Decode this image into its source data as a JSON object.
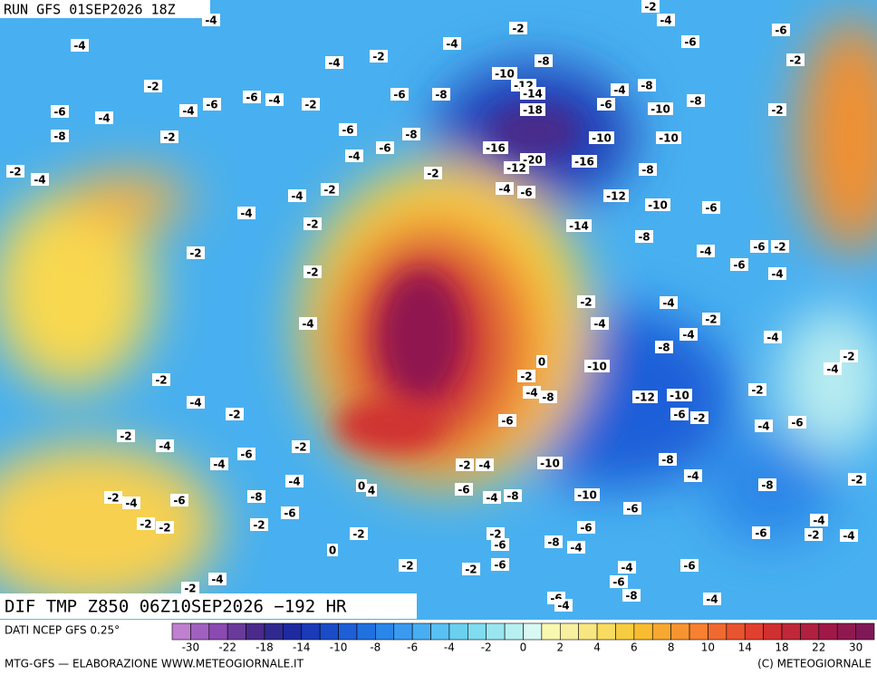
{
  "header": {
    "run": "RUN GFS 01SEP2026 18Z",
    "product": "DIF TMP Z850 06Z10SEP2026 −192 HR",
    "source": "DATI NCEP GFS 0.25°",
    "credit": "MTG-GFS — ELABORAZIONE WWW.METEOGIORNALE.IT",
    "copyright": "(C) METEOGIORNALE"
  },
  "legend": {
    "labels": [
      -30,
      -22,
      -18,
      -14,
      -10,
      -8,
      -6,
      -4,
      -2,
      0,
      2,
      4,
      6,
      8,
      10,
      14,
      18,
      22,
      30
    ],
    "colors": [
      "#c080d0",
      "#a060c0",
      "#8a4ab0",
      "#6a3a9a",
      "#4a2a8a",
      "#302a90",
      "#1e2aa0",
      "#1a3ab8",
      "#1a4cc8",
      "#1e5ed8",
      "#2070e0",
      "#2a86e8",
      "#3a9af0",
      "#48aef2",
      "#58c0f4",
      "#6ad0f0",
      "#80dcf0",
      "#9ae6f0",
      "#b8f0f0",
      "#d8f8f4",
      "#f8f8b0",
      "#f8f0a0",
      "#f8e680",
      "#f8dc60",
      "#f8cc40",
      "#f8bc30",
      "#f8a830",
      "#f89430",
      "#f88030",
      "#f06a30",
      "#e85430",
      "#e04030",
      "#d03030",
      "#c02838",
      "#b02040",
      "#a01848",
      "#901850",
      "#801858"
    ]
  },
  "contour_labels": [
    -4,
    -2,
    -2,
    -4,
    -6,
    -4,
    -4,
    -6,
    -2,
    -4,
    -8,
    -2,
    -10,
    -12,
    -14,
    -4,
    -8,
    -2,
    -6,
    -8,
    -6,
    -4,
    -8,
    -10,
    -18,
    -6,
    -4,
    -6,
    -4,
    -2,
    -2,
    -6,
    -8,
    -2,
    -6,
    -8,
    -10,
    -10,
    -16,
    -6,
    -20,
    -12,
    -16,
    -2,
    -4,
    -4,
    -2,
    -8,
    -4,
    -6,
    -2,
    -4,
    -12,
    -10,
    -4,
    -2,
    -6,
    -14,
    -8,
    -6,
    -2,
    -2,
    -4,
    -6,
    -4,
    -2,
    -2,
    -4,
    -2,
    -4,
    -4,
    -4,
    -4,
    -8,
    0,
    -10,
    -2,
    -4,
    -2,
    -2,
    -4,
    -8,
    -12,
    -10,
    -2,
    -4,
    -2,
    -6,
    -2,
    -6,
    -4,
    -6,
    -2,
    -4,
    -2,
    -6,
    -4,
    -8,
    -10,
    -2,
    -4,
    -4,
    -4,
    -2,
    -8,
    0,
    4,
    -6,
    -8,
    -4,
    -10,
    -8,
    -2,
    -4,
    -6,
    -6,
    -6,
    -2,
    -2,
    -2,
    -6,
    -4,
    -6,
    -2,
    -4,
    -2,
    -2,
    -6,
    -8,
    -4,
    0,
    -2,
    -6,
    -2,
    -6,
    -4,
    -6,
    -4,
    -2,
    -8,
    -4,
    -6,
    -4
  ]
}
